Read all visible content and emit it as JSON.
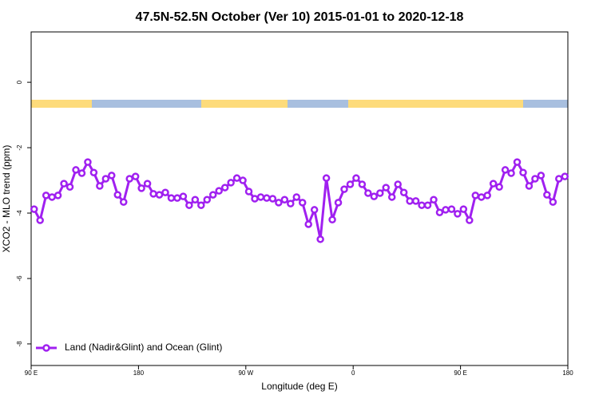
{
  "chart_data": {
    "type": "line",
    "title": "47.5N-52.5N October (Ver 10)   2015-01-01 to 2020-12-18",
    "x_label": "Longitude (deg E)",
    "y_label": "XCO2 - MLO trend (ppm)",
    "x": [
      92.5,
      97.5,
      102.5,
      107.5,
      112.5,
      117.5,
      122.5,
      127.5,
      132.5,
      137.5,
      142.5,
      147.5,
      152.5,
      157.5,
      162.5,
      167.5,
      172.5,
      177.5,
      182.5,
      187.5,
      192.5,
      197.5,
      202.5,
      207.5,
      212.5,
      217.5,
      222.5,
      227.5,
      232.5,
      237.5,
      242.5,
      247.5,
      252.5,
      257.5,
      262.5,
      267.5,
      272.5,
      277.5,
      282.5,
      287.5,
      292.5,
      297.5,
      302.5,
      307.5,
      312.5,
      317.5,
      322.5,
      327.5,
      332.5,
      337.5,
      342.5,
      347.5,
      352.5,
      357.5,
      362.5,
      367.5,
      372.5,
      377.5,
      382.5,
      387.5,
      392.5,
      397.5,
      402.5,
      407.5,
      412.5,
      417.5,
      422.5,
      427.5,
      432.5,
      437.5,
      442.5,
      447.5,
      452.5,
      457.5,
      462.5,
      467.5,
      472.5,
      477.5,
      482.5,
      487.5,
      492.5,
      497.5,
      502.5,
      507.5,
      512.5,
      517.5,
      522.5,
      527.5,
      532.5,
      537.5
    ],
    "series": [
      {
        "name": "Land (Nadir&Glint) and Ocean (Glint)",
        "color": "#a020f0",
        "values": [
          -3.88,
          -4.22,
          -3.46,
          -3.51,
          -3.46,
          -3.1,
          -3.2,
          -2.68,
          -2.78,
          -2.44,
          -2.76,
          -3.17,
          -2.95,
          -2.85,
          -3.44,
          -3.66,
          -2.95,
          -2.88,
          -3.24,
          -3.1,
          -3.41,
          -3.44,
          -3.37,
          -3.54,
          -3.54,
          -3.49,
          -3.76,
          -3.59,
          -3.76,
          -3.59,
          -3.44,
          -3.32,
          -3.22,
          -3.07,
          -2.93,
          -3.0,
          -3.34,
          -3.56,
          -3.51,
          -3.54,
          -3.56,
          -3.68,
          -3.59,
          -3.71,
          -3.51,
          -3.68,
          -4.34,
          -3.9,
          -4.8,
          -2.93,
          -4.2,
          -3.68,
          -3.27,
          -3.12,
          -2.93,
          -3.12,
          -3.39,
          -3.49,
          -3.39,
          -3.22,
          -3.51,
          -3.12,
          -3.37,
          -3.63,
          -3.63,
          -3.76,
          -3.76,
          -3.59,
          -3.98,
          -3.9,
          -3.88,
          -4.02,
          -3.88,
          -4.22,
          -3.46,
          -3.51,
          -3.46,
          -3.1,
          -3.2,
          -2.68,
          -2.78,
          -2.44,
          -2.76,
          -3.17,
          -2.95,
          -2.85,
          -3.44,
          -3.66,
          -2.95,
          -2.88
        ]
      }
    ],
    "xlim": [
      90,
      540
    ],
    "xticks": [
      {
        "value": 90,
        "label": "90 E"
      },
      180,
      {
        "value": 270,
        "label": "90 W"
      },
      {
        "value": 360,
        "label": "0"
      },
      {
        "value": 450,
        "label": "90 E"
      },
      {
        "value": 540,
        "label": "180"
      }
    ],
    "ylim": [
      -8.66,
      1.54
    ],
    "yticks": [
      0,
      -2,
      -4,
      -6,
      -8
    ],
    "legend": "bottom-left"
  }
}
